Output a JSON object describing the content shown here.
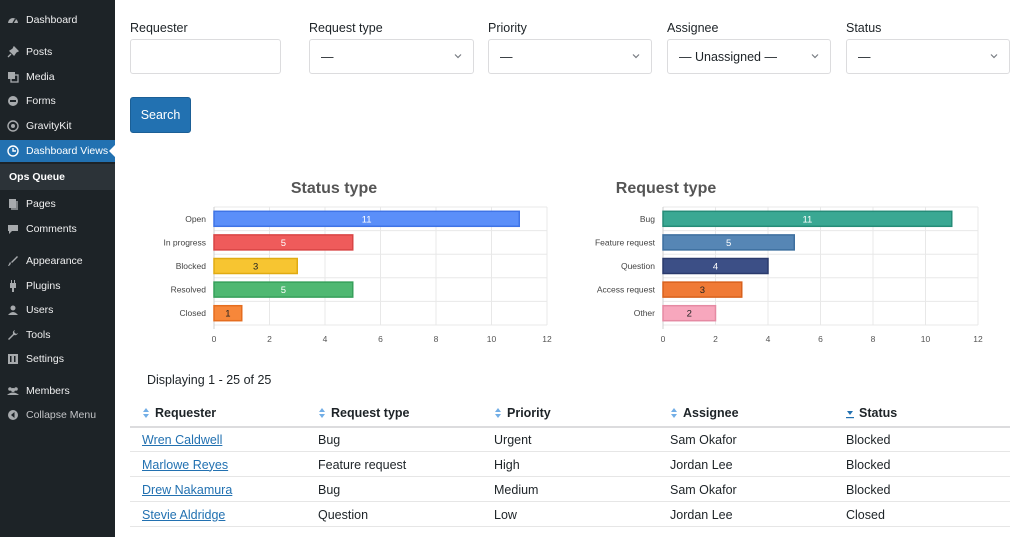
{
  "sidebar": {
    "items": [
      {
        "label": "Dashboard",
        "icon": "dashboard-icon"
      },
      {
        "label": "Posts",
        "icon": "pin-icon"
      },
      {
        "label": "Media",
        "icon": "media-icon"
      },
      {
        "label": "Forms",
        "icon": "forms-icon"
      },
      {
        "label": "GravityKit",
        "icon": "gravitykit-icon"
      },
      {
        "label": "Dashboard Views",
        "icon": "dashboard-views-icon"
      },
      {
        "label": "Pages",
        "icon": "pages-icon"
      },
      {
        "label": "Comments",
        "icon": "comments-icon"
      },
      {
        "label": "Appearance",
        "icon": "appearance-icon"
      },
      {
        "label": "Plugins",
        "icon": "plugins-icon"
      },
      {
        "label": "Users",
        "icon": "users-icon"
      },
      {
        "label": "Tools",
        "icon": "tools-icon"
      },
      {
        "label": "Settings",
        "icon": "settings-icon"
      },
      {
        "label": "Members",
        "icon": "members-icon"
      },
      {
        "label": "Collapse Menu",
        "icon": "collapse-icon"
      }
    ],
    "sub_item": "Ops Queue"
  },
  "filters": {
    "requester": {
      "label": "Requester",
      "value": ""
    },
    "request_type": {
      "label": "Request type",
      "value": "—"
    },
    "priority": {
      "label": "Priority",
      "value": "—"
    },
    "assignee": {
      "label": "Assignee",
      "value": "— Unassigned —"
    },
    "status": {
      "label": "Status",
      "value": "—"
    },
    "search_label": "Search"
  },
  "chart_data": [
    {
      "type": "bar",
      "orientation": "horizontal",
      "title": "Status type",
      "categories": [
        "Open",
        "In progress",
        "Blocked",
        "Resolved",
        "Closed"
      ],
      "values": [
        11,
        5,
        3,
        5,
        1
      ],
      "colors": [
        "#5b8ff9",
        "#ef5b5b",
        "#f7c531",
        "#4fb872",
        "#f7873a"
      ],
      "borders": [
        "#3f74e6",
        "#d94545",
        "#e0ab12",
        "#37a05b",
        "#e56d1f"
      ],
      "xlim": [
        0,
        12
      ],
      "xticks": [
        0,
        2,
        4,
        6,
        8,
        10,
        12
      ],
      "grid": true
    },
    {
      "type": "bar",
      "orientation": "horizontal",
      "title": "Request type",
      "categories": [
        "Bug",
        "Feature request",
        "Question",
        "Access request",
        "Other"
      ],
      "values": [
        11,
        5,
        4,
        3,
        2
      ],
      "colors": [
        "#3aa893",
        "#5686b5",
        "#3c4f86",
        "#f07a36",
        "#f7a7bd"
      ],
      "borders": [
        "#268c78",
        "#3d6f9f",
        "#2a3a6c",
        "#d8611d",
        "#e58aa3"
      ],
      "xlim": [
        0,
        12
      ],
      "xticks": [
        0,
        2,
        4,
        6,
        8,
        10,
        12
      ],
      "grid": true
    }
  ],
  "display_count": "Displaying 1 - 25 of 25",
  "table": {
    "columns": [
      "Requester",
      "Request type",
      "Priority",
      "Assignee",
      "Status"
    ],
    "rows": [
      [
        "Wren Caldwell",
        "Bug",
        "Urgent",
        "Sam Okafor",
        "Blocked"
      ],
      [
        "Marlowe Reyes",
        "Feature request",
        "High",
        "Jordan Lee",
        "Blocked"
      ],
      [
        "Drew Nakamura",
        "Bug",
        "Medium",
        "Sam Okafor",
        "Blocked"
      ],
      [
        "Stevie Aldridge",
        "Question",
        "Low",
        "Jordan Lee",
        "Closed"
      ]
    ]
  }
}
